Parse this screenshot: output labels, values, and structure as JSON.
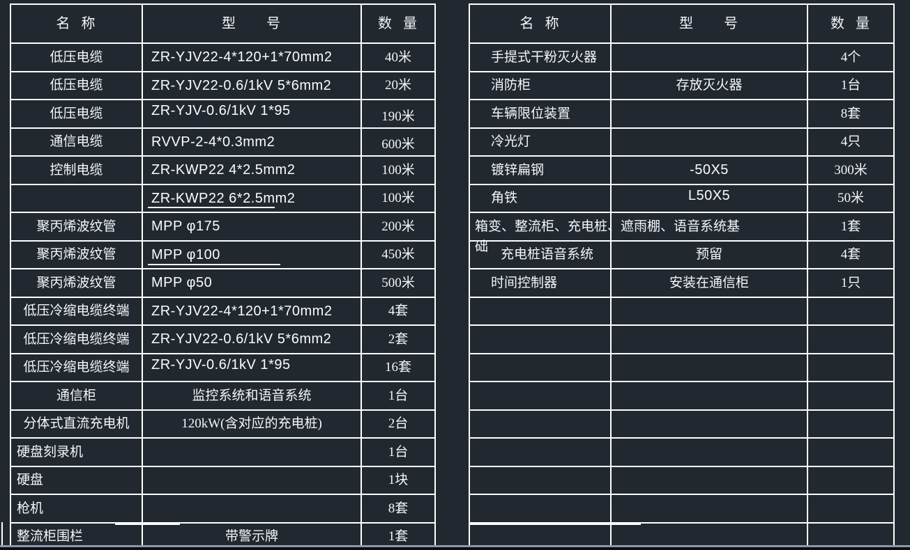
{
  "canvas": {
    "background_color": "#212830",
    "line_color": "#ffffff",
    "text_color": "#f4f6f8",
    "bottom_edge_color": "#8d99a6"
  },
  "left_table": {
    "headers": [
      "名  称",
      "型      号",
      "数  量"
    ],
    "rows": [
      {
        "name": "低压电缆",
        "model": "ZR-YJV22-4*120+1*70mm2",
        "qty": "40米"
      },
      {
        "name": "低压电缆",
        "model": "ZR-YJV22-0.6/1kV 5*6mm2",
        "qty": "20米"
      },
      {
        "name": "低压电缆",
        "model": "ZR-YJV-0.6/1kV 1*95",
        "qty": "190米"
      },
      {
        "name": "通信电缆",
        "model": "RVVP-2-4*0.3mm2",
        "qty": "600米"
      },
      {
        "name": "控制电缆",
        "model": "ZR-KWP22 4*2.5mm2",
        "qty": "100米"
      },
      {
        "name": "",
        "model": "ZR-KWP22 6*2.5mm2",
        "qty": "100米"
      },
      {
        "name": "聚丙烯波纹管",
        "model": "MPP φ175",
        "qty": "200米"
      },
      {
        "name": "聚丙烯波纹管",
        "model": "MPP φ100",
        "qty": "450米"
      },
      {
        "name": "聚丙烯波纹管",
        "model": "MPP φ50",
        "qty": "500米"
      },
      {
        "name": "低压冷缩电缆终端",
        "model": "ZR-YJV22-4*120+1*70mm2",
        "qty": "4套"
      },
      {
        "name": "低压冷缩电缆终端",
        "model": "ZR-YJV22-0.6/1kV 5*6mm2",
        "qty": "2套"
      },
      {
        "name": "低压冷缩电缆终端",
        "model": "ZR-YJV-0.6/1kV 1*95",
        "qty": "16套"
      },
      {
        "name": "通信柜",
        "model": "监控系统和语音系统",
        "qty": "1台"
      },
      {
        "name": "分体式直流充电机",
        "model": "120kW(含对应的充电桩)",
        "qty": "2台"
      },
      {
        "name": "硬盘刻录机",
        "model": "",
        "qty": "1台"
      },
      {
        "name": "硬盘",
        "model": "",
        "qty": "1块"
      },
      {
        "name": "枪机",
        "model": "",
        "qty": "8套"
      },
      {
        "name": "整流柜围栏",
        "model": "带警示牌",
        "qty": "1套"
      }
    ]
  },
  "right_table": {
    "headers": [
      "名  称",
      "型      号",
      "数  量"
    ],
    "rows": [
      {
        "name": "手提式干粉灭火器",
        "model": "",
        "qty": "4个"
      },
      {
        "name": "消防柜",
        "model": "存放灭火器",
        "qty": "1台"
      },
      {
        "name": "车辆限位装置",
        "model": "",
        "qty": "8套"
      },
      {
        "name": "冷光灯",
        "model": "",
        "qty": "4只"
      },
      {
        "name": "镀锌扁钢",
        "model": "-50X5",
        "qty": "300米"
      },
      {
        "name": "角铁",
        "model": "L50X5",
        "qty": "50米"
      },
      {
        "name_line1": "箱变、整流柜、充电桩、遮雨棚、语音系统基",
        "name_line2": "础",
        "model": "",
        "qty": "1套"
      },
      {
        "name": "充电桩语音系统",
        "model": "预留",
        "qty": "4套"
      },
      {
        "name": "时间控制器",
        "model": "安装在通信柜",
        "qty": "1只"
      },
      {
        "name": "",
        "model": "",
        "qty": ""
      },
      {
        "name": "",
        "model": "",
        "qty": ""
      },
      {
        "name": "",
        "model": "",
        "qty": ""
      },
      {
        "name": "",
        "model": "",
        "qty": ""
      },
      {
        "name": "",
        "model": "",
        "qty": ""
      },
      {
        "name": "",
        "model": "",
        "qty": ""
      },
      {
        "name": "",
        "model": "",
        "qty": ""
      },
      {
        "name": "",
        "model": "",
        "qty": ""
      },
      {
        "name": "",
        "model": "",
        "qty": ""
      }
    ]
  }
}
